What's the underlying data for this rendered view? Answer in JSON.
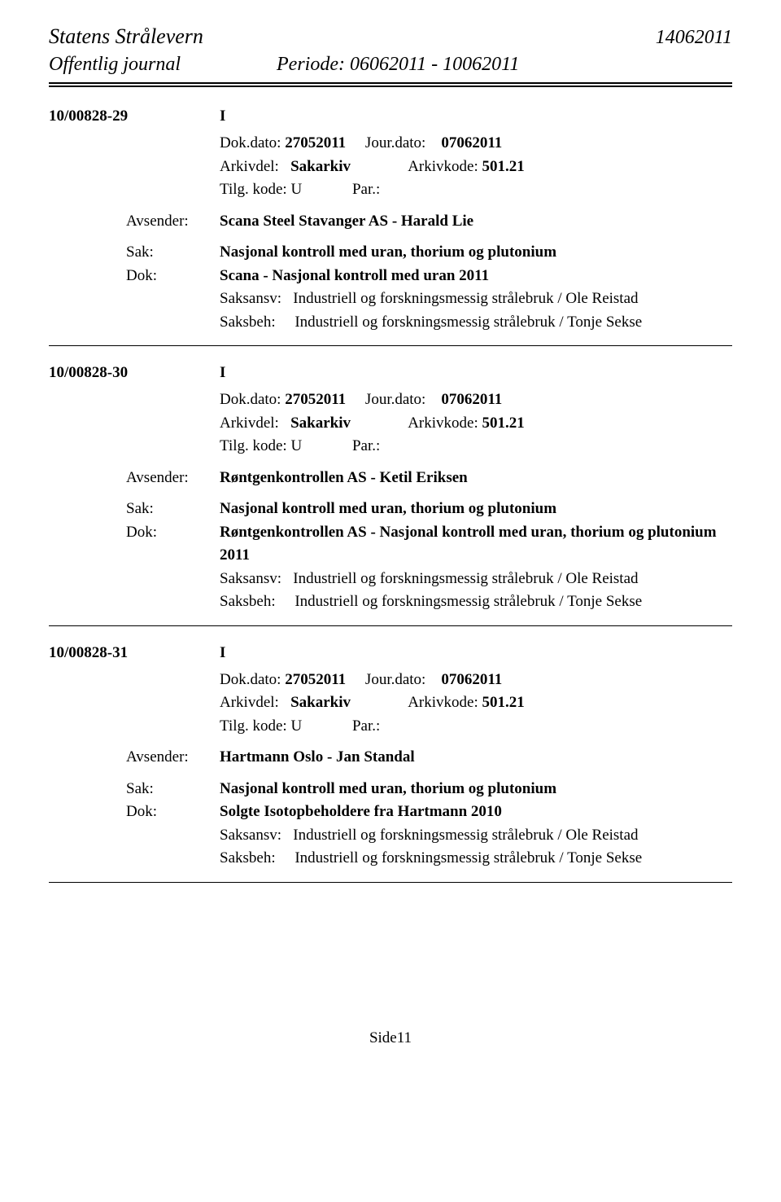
{
  "header": {
    "org": "Statens Strålevern",
    "date_code": "14062011",
    "journal_title": "Offentlig journal",
    "period": "Periode: 06062011 - 10062011"
  },
  "entries": [
    {
      "id": "10/00828-29",
      "type": "I",
      "dok_dato_label": "Dok.dato:",
      "dok_dato": "27052011",
      "jour_dato_label": "Jour.dato:",
      "jour_dato": "07062011",
      "arkivdel_label": "Arkivdel:",
      "arkivdel": "Sakarkiv",
      "arkivkode_label": "Arkivkode:",
      "arkivkode": "501.21",
      "tilg_label": "Tilg. kode:",
      "tilg_value": "U",
      "par_label": "Par.:",
      "avsender_label": "Avsender:",
      "avsender": "Scana Steel Stavanger AS - Harald  Lie",
      "sak_label": "Sak:",
      "sak": "Nasjonal kontroll med uran, thorium og plutonium",
      "dok_label": "Dok:",
      "dok": "Scana - Nasjonal kontroll med uran 2011",
      "saksansv_label": "Saksansv:",
      "saksansv": "Industriell og forskningsmessig strålebruk / Ole Reistad",
      "saksbeh_label": "Saksbeh:",
      "saksbeh": "Industriell og forskningsmessig strålebruk / Tonje Sekse"
    },
    {
      "id": "10/00828-30",
      "type": "I",
      "dok_dato_label": "Dok.dato:",
      "dok_dato": "27052011",
      "jour_dato_label": "Jour.dato:",
      "jour_dato": "07062011",
      "arkivdel_label": "Arkivdel:",
      "arkivdel": "Sakarkiv",
      "arkivkode_label": "Arkivkode:",
      "arkivkode": "501.21",
      "tilg_label": "Tilg. kode:",
      "tilg_value": "U",
      "par_label": "Par.:",
      "avsender_label": "Avsender:",
      "avsender": "Røntgenkontrollen AS - Ketil Eriksen",
      "sak_label": "Sak:",
      "sak": "Nasjonal kontroll med uran, thorium og plutonium",
      "dok_label": "Dok:",
      "dok": "Røntgenkontrollen AS - Nasjonal kontroll med uran, thorium og plutonium 2011",
      "saksansv_label": "Saksansv:",
      "saksansv": "Industriell og forskningsmessig strålebruk / Ole Reistad",
      "saksbeh_label": "Saksbeh:",
      "saksbeh": "Industriell og forskningsmessig strålebruk / Tonje Sekse"
    },
    {
      "id": "10/00828-31",
      "type": "I",
      "dok_dato_label": "Dok.dato:",
      "dok_dato": "27052011",
      "jour_dato_label": "Jour.dato:",
      "jour_dato": "07062011",
      "arkivdel_label": "Arkivdel:",
      "arkivdel": "Sakarkiv",
      "arkivkode_label": "Arkivkode:",
      "arkivkode": "501.21",
      "tilg_label": "Tilg. kode:",
      "tilg_value": "U",
      "par_label": "Par.:",
      "avsender_label": "Avsender:",
      "avsender": "Hartmann Oslo - Jan  Standal",
      "sak_label": "Sak:",
      "sak": "Nasjonal kontroll med uran, thorium og plutonium",
      "dok_label": "Dok:",
      "dok": "Solgte Isotopbeholdere fra Hartmann 2010",
      "saksansv_label": "Saksansv:",
      "saksansv": "Industriell og forskningsmessig strålebruk / Ole Reistad",
      "saksbeh_label": "Saksbeh:",
      "saksbeh": "Industriell og forskningsmessig strålebruk / Tonje Sekse"
    }
  ],
  "footer": {
    "page": "Side11"
  }
}
